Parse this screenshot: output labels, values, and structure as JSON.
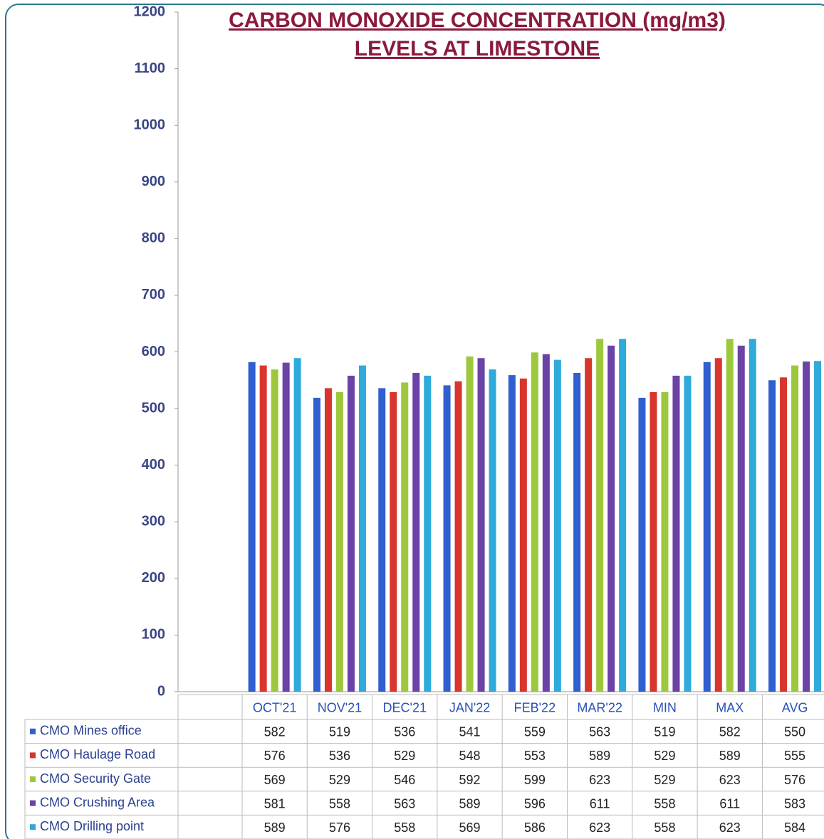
{
  "chart_data": {
    "type": "bar",
    "title": [
      "CARBON MONOXIDE CONCENTRATION (mg/m3)",
      "LEVELS AT LIMESTONE"
    ],
    "categories": [
      "OCT'21",
      "NOV'21",
      "DEC'21",
      "JAN'22",
      "FEB'22",
      "MAR'22",
      "MIN",
      "MAX",
      "AVG"
    ],
    "series": [
      {
        "name": "CMO Mines office",
        "color": "#2f5fd0",
        "values": [
          582,
          519,
          536,
          541,
          559,
          563,
          519,
          582,
          550
        ]
      },
      {
        "name": "CMO Haulage Road",
        "color": "#d8352c",
        "values": [
          576,
          536,
          529,
          548,
          553,
          589,
          529,
          589,
          555
        ]
      },
      {
        "name": "CMO Security Gate",
        "color": "#9dc83c",
        "values": [
          569,
          529,
          546,
          592,
          599,
          623,
          529,
          623,
          576
        ]
      },
      {
        "name": "CMO Crushing Area",
        "color": "#6b42a6",
        "values": [
          581,
          558,
          563,
          589,
          596,
          611,
          558,
          611,
          583
        ]
      },
      {
        "name": "CMO Drilling point",
        "color": "#2eaadb",
        "values": [
          589,
          576,
          558,
          569,
          586,
          623,
          558,
          623,
          584
        ]
      }
    ],
    "ylim": [
      0,
      1200
    ],
    "yticks": [
      0,
      100,
      200,
      300,
      400,
      500,
      600,
      700,
      800,
      900,
      1000,
      1100,
      1200
    ],
    "grid": false
  }
}
